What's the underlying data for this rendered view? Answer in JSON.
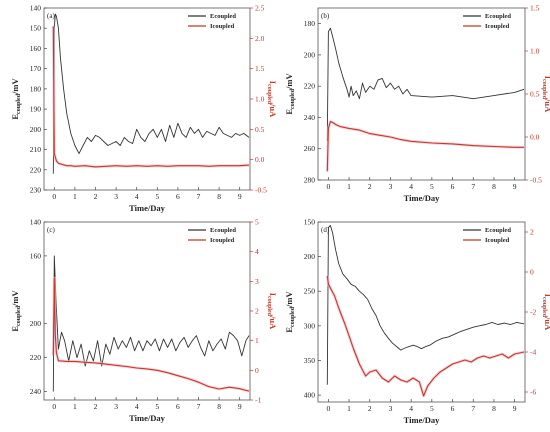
{
  "chart_data": [
    {
      "type": "line",
      "panel_label": "(a)",
      "xlabel": "Time/Day",
      "ylabel_main": "E",
      "ylabel_sub": "coupled",
      "ylabel_unit": "/mV",
      "y2label_main": "I",
      "y2label_sub": "coupled",
      "y2label_unit": "/uA",
      "xlim": [
        -0.5,
        9.5
      ],
      "xticks": [
        0,
        1,
        2,
        3,
        4,
        5,
        6,
        7,
        8,
        9
      ],
      "ylim": [
        140,
        230
      ],
      "y_inverted": true,
      "yticks": [
        140,
        150,
        160,
        170,
        180,
        190,
        200,
        210,
        220,
        230
      ],
      "y2lim": [
        -0.5,
        2.5
      ],
      "y2ticks": [
        -0.5,
        0.0,
        0.5,
        1.0,
        1.5,
        2.0,
        2.5
      ],
      "y2tick_labels": [
        "-0.5",
        "0.0",
        "0.5",
        "1.0",
        "1.5",
        "2.0",
        "2.5"
      ],
      "legend_position": "top-right",
      "series": [
        {
          "name": "Ecoupled",
          "axis": "left",
          "color": "#4a4a4a",
          "x": [
            -0.05,
            0.0,
            0.05,
            0.1,
            0.2,
            0.3,
            0.45,
            0.6,
            0.8,
            1.0,
            1.2,
            1.4,
            1.6,
            1.8,
            2.0,
            2.2,
            2.4,
            2.6,
            2.8,
            3.0,
            3.2,
            3.4,
            3.6,
            3.8,
            4.0,
            4.2,
            4.4,
            4.6,
            4.8,
            5.0,
            5.2,
            5.4,
            5.6,
            5.8,
            6.0,
            6.2,
            6.4,
            6.6,
            6.8,
            7.0,
            7.2,
            7.4,
            7.6,
            7.8,
            8.0,
            8.2,
            8.4,
            8.6,
            8.8,
            9.0,
            9.2,
            9.45
          ],
          "y": [
            222,
            150,
            143,
            144,
            150,
            165,
            180,
            192,
            202,
            208,
            212,
            208,
            204,
            206,
            203,
            204,
            206,
            208,
            207,
            206,
            208,
            204,
            206,
            207,
            200,
            204,
            206,
            202,
            200,
            204,
            200,
            206,
            198,
            204,
            197,
            202,
            204,
            199,
            202,
            200,
            204,
            201,
            202,
            203,
            199,
            202,
            203,
            204,
            202,
            203,
            202,
            204
          ]
        },
        {
          "name": "Icoupled",
          "axis": "right",
          "color": "#a31515",
          "x": [
            -0.05,
            0.0,
            0.1,
            0.2,
            0.4,
            0.6,
            0.8,
            1.0,
            1.5,
            2.0,
            2.5,
            3.0,
            3.5,
            4.0,
            4.5,
            5.0,
            5.5,
            6.0,
            6.5,
            7.0,
            7.5,
            8.0,
            8.5,
            9.0,
            9.45
          ],
          "y": [
            2.2,
            0.1,
            -0.02,
            -0.06,
            -0.08,
            -0.1,
            -0.1,
            -0.11,
            -0.1,
            -0.12,
            -0.11,
            -0.1,
            -0.11,
            -0.1,
            -0.11,
            -0.1,
            -0.11,
            -0.1,
            -0.1,
            -0.1,
            -0.11,
            -0.1,
            -0.1,
            -0.1,
            -0.09
          ]
        }
      ]
    },
    {
      "type": "line",
      "panel_label": "(b)",
      "xlabel": "Time/Day",
      "ylabel_main": "E",
      "ylabel_sub": "coupled",
      "ylabel_unit": "/mV",
      "y2label_main": "I",
      "y2label_sub": "coupled",
      "y2label_unit": "/uA",
      "xlim": [
        -0.5,
        9.5
      ],
      "xticks": [
        0,
        1,
        2,
        3,
        4,
        5,
        6,
        7,
        8,
        9
      ],
      "ylim": [
        170,
        280
      ],
      "y_inverted": true,
      "yticks": [
        180,
        200,
        220,
        240,
        260,
        280
      ],
      "y2lim": [
        -0.5,
        1.5
      ],
      "y2ticks": [
        -0.5,
        0.0,
        0.5,
        1.0,
        1.5
      ],
      "y2tick_labels": [
        "-0.5",
        "0.0",
        "0.5",
        "1.0",
        "1.5"
      ],
      "legend_position": "top-right",
      "series": [
        {
          "name": "Ecoupled",
          "axis": "left",
          "color": "#4a4a4a",
          "x": [
            -0.05,
            0.0,
            0.1,
            0.2,
            0.35,
            0.5,
            0.7,
            0.9,
            1.0,
            1.1,
            1.2,
            1.35,
            1.5,
            1.65,
            1.8,
            2.0,
            2.2,
            2.4,
            2.6,
            2.8,
            3.0,
            3.2,
            3.4,
            3.6,
            3.8,
            4.0,
            5.0,
            6.0,
            7.0,
            8.0,
            9.0,
            9.45
          ],
          "y": [
            255,
            185,
            183,
            188,
            196,
            205,
            214,
            222,
            227,
            220,
            226,
            223,
            228,
            218,
            224,
            220,
            222,
            216,
            215,
            221,
            218,
            222,
            220,
            225,
            222,
            226,
            227,
            226,
            228,
            226,
            224,
            222
          ]
        },
        {
          "name": "Icoupled",
          "axis": "right",
          "color": "#a31515",
          "x": [
            -0.05,
            0.0,
            0.1,
            0.2,
            0.4,
            0.6,
            1.0,
            1.5,
            2.0,
            2.5,
            3.0,
            3.5,
            4.0,
            5.0,
            6.0,
            7.0,
            8.0,
            9.0,
            9.45
          ],
          "y": [
            -0.4,
            0.1,
            0.18,
            0.17,
            0.14,
            0.12,
            0.1,
            0.08,
            0.04,
            0.02,
            0.0,
            -0.03,
            -0.05,
            -0.07,
            -0.08,
            -0.1,
            -0.11,
            -0.12,
            -0.12
          ]
        }
      ]
    },
    {
      "type": "line",
      "panel_label": "(c)",
      "xlabel": "Time/Day",
      "ylabel_main": "E",
      "ylabel_sub": "coupled",
      "ylabel_unit": "/mV",
      "y2label_main": "I",
      "y2label_sub": "coupled",
      "y2label_unit": "/uA",
      "xlim": [
        -0.5,
        9.5
      ],
      "xticks": [
        0,
        1,
        2,
        3,
        4,
        5,
        6,
        7,
        8,
        9
      ],
      "ylim": [
        140,
        245
      ],
      "y_inverted": true,
      "yticks": [
        140,
        160,
        200,
        220,
        240
      ],
      "y2lim": [
        -1,
        5
      ],
      "y2ticks": [
        -1,
        0,
        1,
        2,
        3,
        4,
        5
      ],
      "y2tick_labels": [
        "-1",
        "0",
        "1",
        "2",
        "3",
        "4",
        "5"
      ],
      "legend_position": "top-right",
      "series": [
        {
          "name": "Ecoupled",
          "axis": "left",
          "color": "#4a4a4a",
          "x": [
            -0.05,
            0.0,
            0.08,
            0.2,
            0.35,
            0.5,
            0.7,
            0.9,
            1.1,
            1.3,
            1.5,
            1.7,
            1.9,
            2.1,
            2.3,
            2.5,
            2.7,
            2.9,
            3.1,
            3.3,
            3.5,
            3.7,
            3.9,
            4.1,
            4.3,
            4.5,
            4.7,
            4.9,
            5.1,
            5.3,
            5.5,
            5.7,
            5.9,
            6.1,
            6.3,
            6.5,
            6.7,
            6.9,
            7.1,
            7.3,
            7.5,
            7.7,
            7.9,
            8.1,
            8.3,
            8.5,
            8.7,
            8.9,
            9.1,
            9.3,
            9.45
          ],
          "y": [
            240,
            160,
            185,
            215,
            205,
            210,
            222,
            210,
            220,
            212,
            225,
            216,
            222,
            210,
            225,
            212,
            218,
            208,
            215,
            210,
            214,
            208,
            216,
            210,
            216,
            210,
            213,
            209,
            216,
            209,
            214,
            209,
            216,
            211,
            208,
            214,
            210,
            207,
            214,
            219,
            210,
            216,
            212,
            209,
            215,
            205,
            207,
            210,
            219,
            210,
            207
          ]
        },
        {
          "name": "Icoupled",
          "axis": "right",
          "color": "#a31515",
          "x": [
            -0.05,
            0.0,
            0.05,
            0.1,
            0.2,
            0.4,
            0.6,
            1.0,
            1.5,
            2.0,
            2.5,
            3.0,
            3.5,
            4.0,
            4.5,
            5.0,
            5.5,
            6.0,
            6.5,
            7.0,
            7.5,
            8.0,
            8.5,
            9.0,
            9.45
          ],
          "y": [
            0.5,
            3.1,
            1.2,
            0.6,
            0.32,
            0.31,
            0.3,
            0.3,
            0.27,
            0.25,
            0.21,
            0.17,
            0.13,
            0.08,
            0.05,
            0.0,
            -0.08,
            -0.18,
            -0.28,
            -0.4,
            -0.55,
            -0.63,
            -0.57,
            -0.62,
            -0.7
          ]
        }
      ]
    },
    {
      "type": "line",
      "panel_label": "(d)",
      "xlabel": "Time/Day",
      "ylabel_main": "E",
      "ylabel_sub": "coupled",
      "ylabel_unit": "/mV",
      "y2label_main": "I",
      "y2label_sub": "coupled",
      "y2label_unit": "/uA",
      "xlim": [
        -0.5,
        9.5
      ],
      "xticks": [
        0,
        1,
        2,
        3,
        4,
        5,
        6,
        7,
        8,
        9
      ],
      "ylim": [
        150,
        410
      ],
      "y_inverted": true,
      "yticks": [
        150,
        200,
        250,
        300,
        350,
        400
      ],
      "y2lim": [
        -6.5,
        2.5
      ],
      "y2ticks": [
        -6,
        -4,
        -2,
        0,
        2
      ],
      "y2tick_labels": [
        "-6",
        "-4",
        "-2",
        "0",
        "2"
      ],
      "legend_position": "top-right",
      "series": [
        {
          "name": "Ecoupled",
          "axis": "left",
          "color": "#4a4a4a",
          "x": [
            -0.05,
            0.0,
            0.1,
            0.2,
            0.35,
            0.5,
            0.7,
            0.9,
            1.1,
            1.3,
            1.5,
            1.7,
            1.9,
            2.1,
            2.3,
            2.5,
            2.7,
            2.9,
            3.1,
            3.3,
            3.5,
            3.7,
            3.9,
            4.1,
            4.3,
            4.5,
            4.7,
            4.9,
            5.2,
            5.5,
            5.8,
            6.1,
            6.4,
            6.7,
            7.0,
            7.3,
            7.6,
            7.9,
            8.2,
            8.5,
            8.8,
            9.1,
            9.45
          ],
          "y": [
            385,
            158,
            155,
            165,
            190,
            210,
            225,
            232,
            240,
            243,
            250,
            255,
            262,
            275,
            285,
            300,
            310,
            318,
            325,
            330,
            335,
            332,
            330,
            328,
            330,
            333,
            330,
            328,
            322,
            318,
            316,
            312,
            308,
            305,
            302,
            300,
            298,
            295,
            298,
            296,
            298,
            295,
            297
          ]
        },
        {
          "name": "Icoupled",
          "axis": "right",
          "color": "#a31515",
          "x": [
            -0.05,
            0.0,
            0.1,
            0.3,
            0.5,
            0.8,
            1.0,
            1.2,
            1.5,
            1.8,
            2.0,
            2.3,
            2.6,
            2.9,
            3.2,
            3.5,
            3.8,
            4.1,
            4.4,
            4.6,
            4.8,
            5.1,
            5.4,
            5.7,
            6.0,
            6.3,
            6.6,
            6.9,
            7.2,
            7.5,
            7.8,
            8.1,
            8.4,
            8.7,
            9.0,
            9.45
          ],
          "y": [
            -0.2,
            -0.6,
            -0.8,
            -1.2,
            -1.8,
            -2.6,
            -3.2,
            -3.8,
            -4.6,
            -5.2,
            -5.0,
            -4.9,
            -5.3,
            -5.5,
            -5.2,
            -5.4,
            -5.5,
            -5.3,
            -5.5,
            -6.2,
            -5.7,
            -5.3,
            -5.0,
            -4.8,
            -4.6,
            -4.5,
            -4.4,
            -4.5,
            -4.3,
            -4.2,
            -4.3,
            -4.2,
            -4.1,
            -4.3,
            -4.1,
            -4.0
          ]
        }
      ]
    }
  ]
}
